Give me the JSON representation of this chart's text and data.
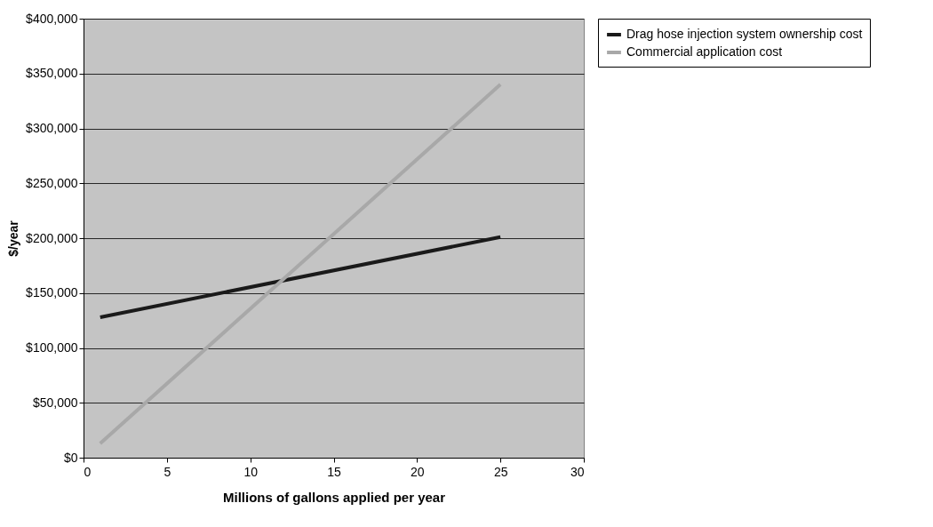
{
  "chart_data": {
    "type": "line",
    "xlabel": "Millions of gallons applied per year",
    "ylabel": "$/year",
    "x": [
      1,
      25
    ],
    "series": [
      {
        "name": "Drag hose injection system ownership cost",
        "color": "#1a1a1a",
        "values": [
          128000,
          201000
        ]
      },
      {
        "name": "Commercial application cost",
        "color": "#a8a8a8",
        "values": [
          13000,
          340000
        ]
      }
    ],
    "xlim": [
      0,
      30
    ],
    "xticks": [
      0,
      5,
      10,
      15,
      20,
      25,
      30
    ],
    "ylim": [
      0,
      400000
    ],
    "yticks": [
      {
        "value": 0,
        "label": "$0"
      },
      {
        "value": 50000,
        "label": "$50,000"
      },
      {
        "value": 100000,
        "label": "$100,000"
      },
      {
        "value": 150000,
        "label": "$150,000"
      },
      {
        "value": 200000,
        "label": "$200,000"
      },
      {
        "value": 250000,
        "label": "$250,000"
      },
      {
        "value": 300000,
        "label": "$300,000"
      },
      {
        "value": 350000,
        "label": "$350,000"
      },
      {
        "value": 400000,
        "label": "$400,000"
      }
    ],
    "grid": "y",
    "legend": "right",
    "marker": "none",
    "line_style": "solid"
  }
}
